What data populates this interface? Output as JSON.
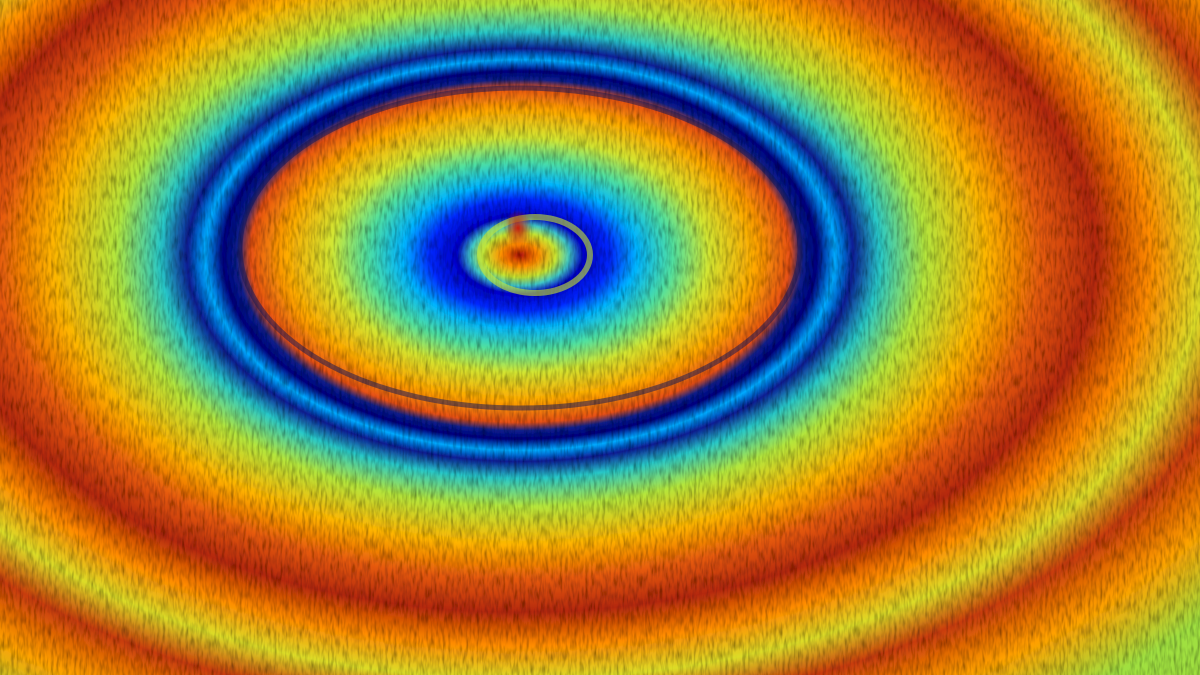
{
  "image": {
    "subject": "3d-surface-concentric-rings",
    "colormap": [
      "#00007f",
      "#0000ff",
      "#00c8ff",
      "#40e0a0",
      "#c8e632",
      "#ffd200",
      "#ff7800",
      "#d22800",
      "#8c1400"
    ]
  }
}
